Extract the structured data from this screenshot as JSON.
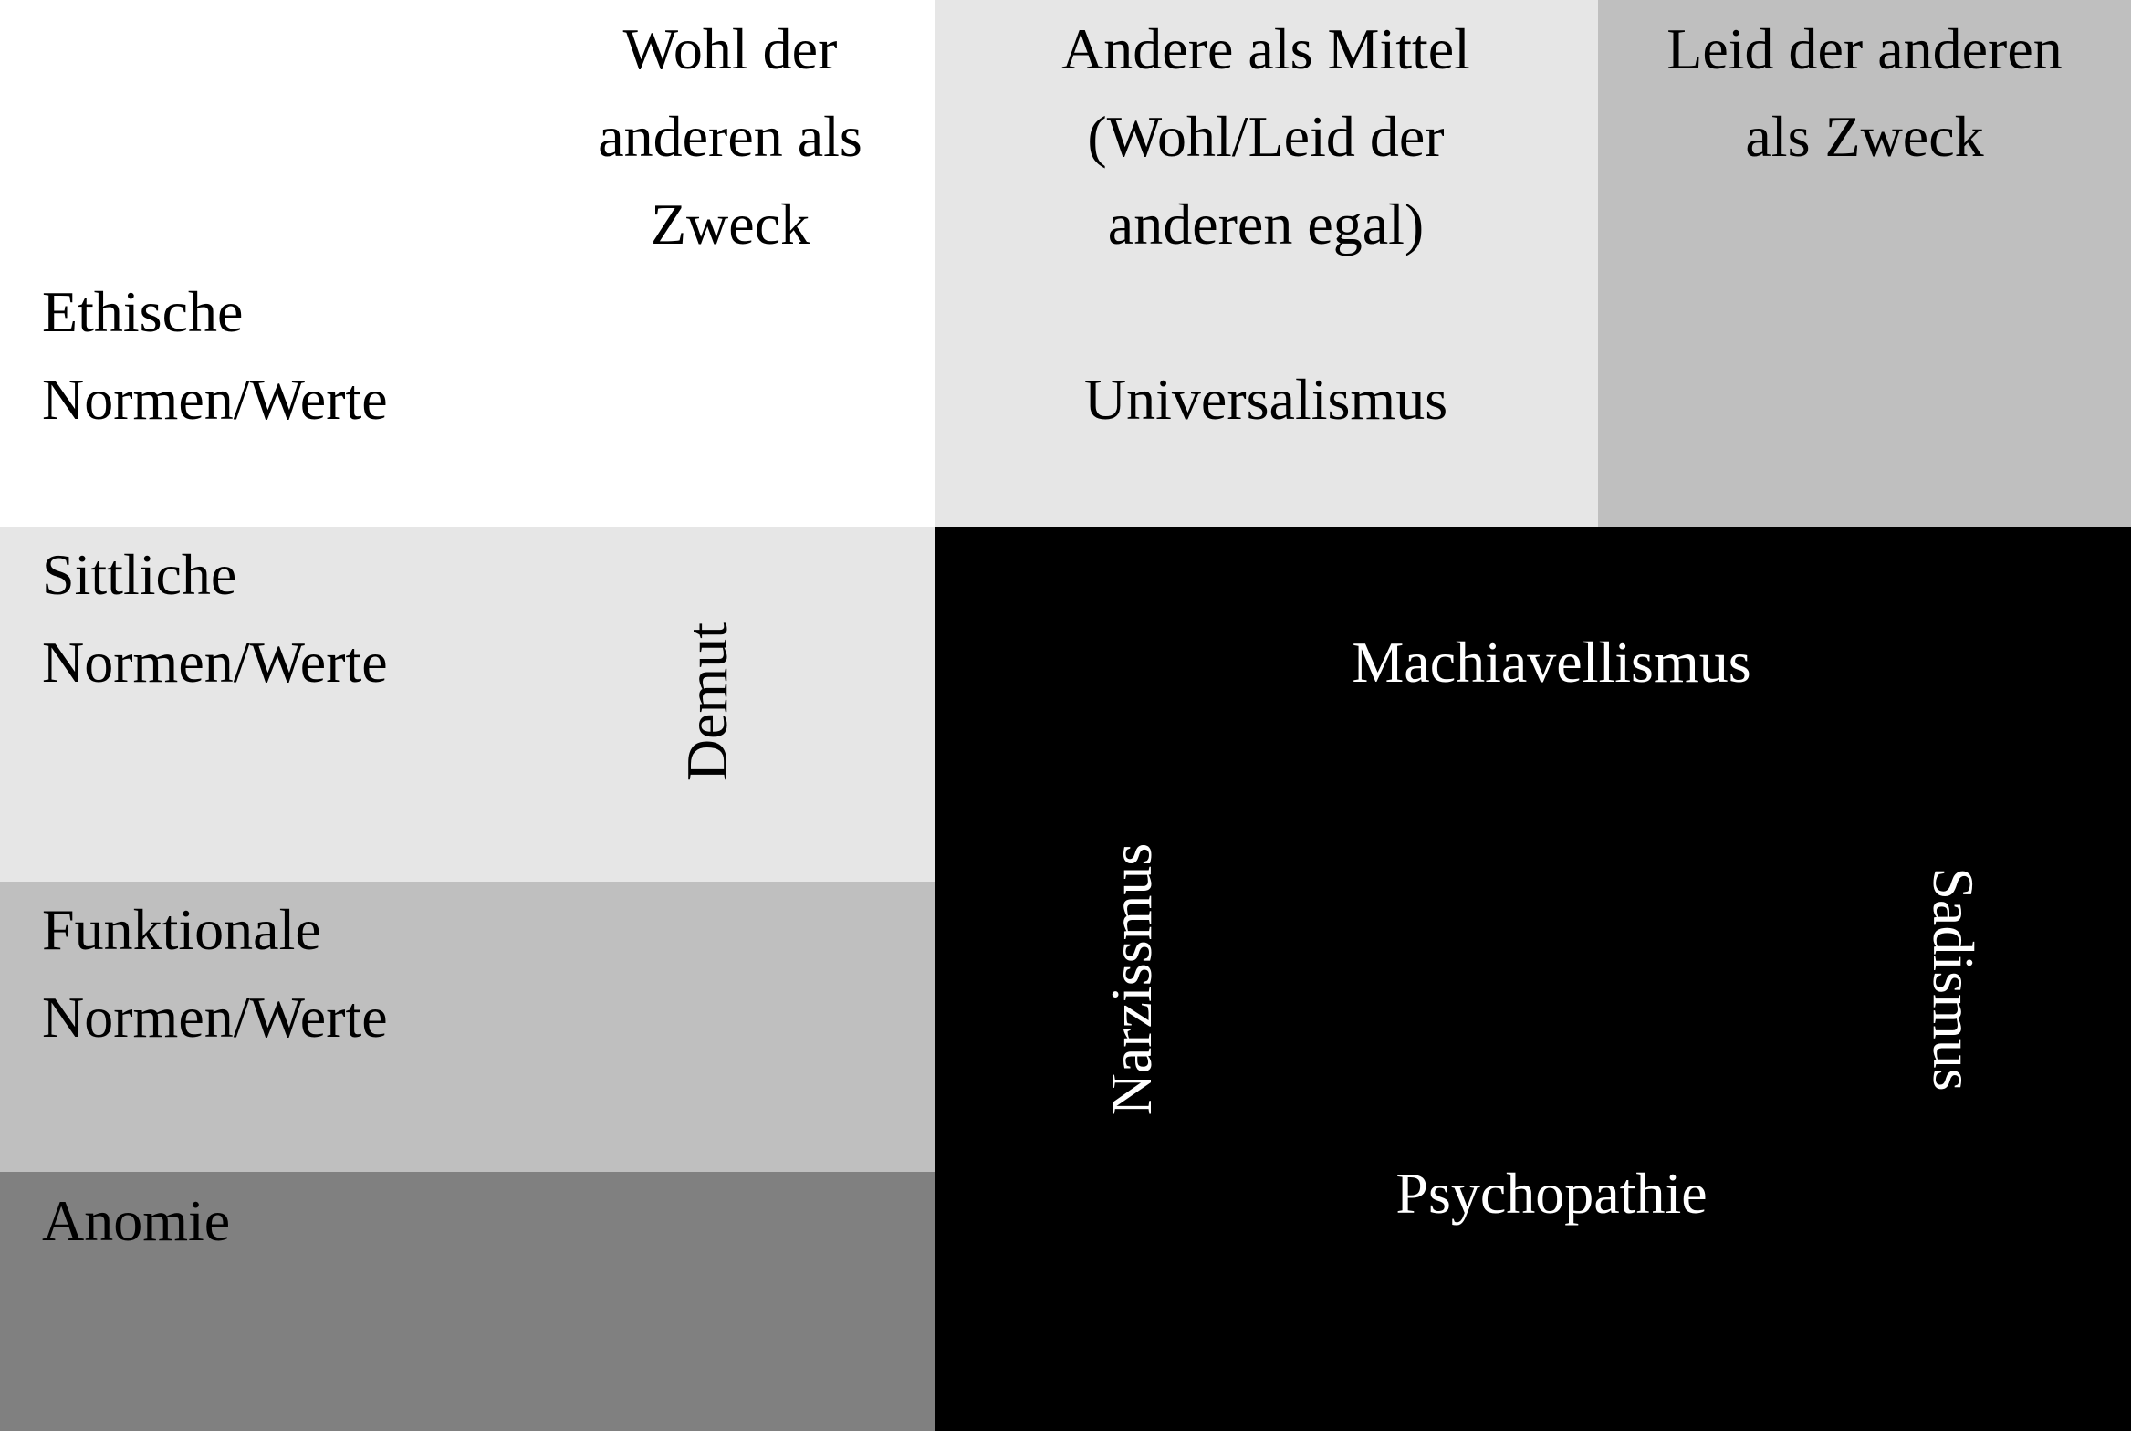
{
  "columns": {
    "wohl": [
      "Wohl der",
      "anderen als",
      "Zweck"
    ],
    "mittel": [
      "Andere als Mittel",
      "(Wohl/Leid der",
      "anderen egal)"
    ],
    "leid": [
      "Leid der anderen",
      "als Zweck"
    ]
  },
  "rows": {
    "ethische": [
      "Ethische",
      "Normen/Werte"
    ],
    "sittliche": [
      "Sittliche",
      "Normen/Werte"
    ],
    "funktionale": [
      "Funktionale",
      "Normen/Werte"
    ],
    "anomie": "Anomie"
  },
  "cells": {
    "universalismus": "Universalismus",
    "demut": "Demut",
    "machiavellismus": "Machiavellismus",
    "narzissmus": "Narzissmus",
    "sadismus": "Sadismus",
    "psychopathie": "Psychopathie"
  },
  "colors": {
    "white": "#ffffff",
    "light_gray": "#e6e6e6",
    "mid_gray": "#bfbfbf",
    "dark_gray": "#808080",
    "black": "#000000"
  }
}
